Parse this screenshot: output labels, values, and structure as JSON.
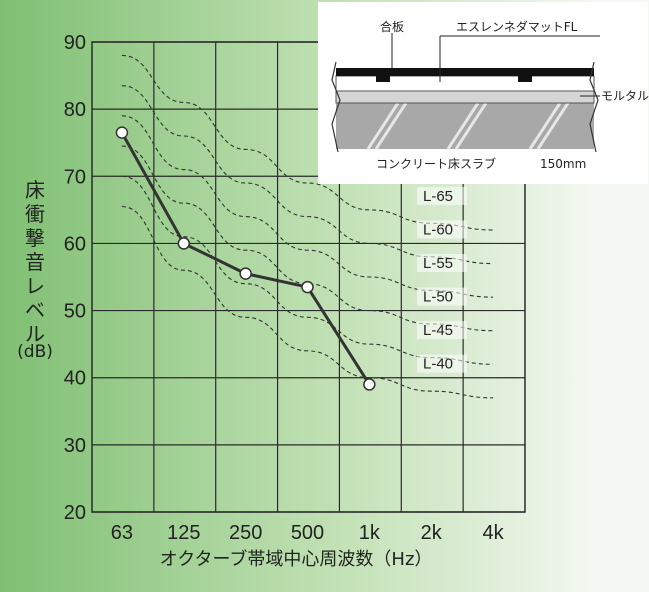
{
  "chart_data": {
    "type": "line",
    "categories": [
      "63",
      "125",
      "250",
      "500",
      "1k",
      "2k",
      "4k"
    ],
    "ylabel": "床衝撃音レベル",
    "ylabel_unit": "(dB)",
    "xlabel": "オクターブ帯域中心周波数（Hz）",
    "ylim": [
      20,
      90
    ],
    "yticks": [
      20,
      30,
      40,
      50,
      60,
      70,
      80,
      90
    ],
    "grid": true,
    "series": [
      {
        "values": [
          76.5,
          60,
          55.5,
          53.5,
          39,
          null,
          null
        ]
      }
    ],
    "reference_curves": [
      {
        "name": "L-65",
        "values": [
          88,
          81,
          74,
          69,
          65,
          63,
          62
        ]
      },
      {
        "name": "L-60",
        "values": [
          83.5,
          76,
          69,
          64,
          60,
          58,
          57
        ]
      },
      {
        "name": "L-55",
        "values": [
          79,
          71,
          64,
          59,
          55,
          53,
          52
        ]
      },
      {
        "name": "L-50",
        "values": [
          74.5,
          66,
          59,
          54,
          50,
          48,
          47
        ]
      },
      {
        "name": "L-45",
        "values": [
          70,
          61,
          54,
          49,
          45,
          43,
          42
        ]
      },
      {
        "name": "L-40",
        "values": [
          65.5,
          56,
          49,
          44,
          40,
          38,
          37
        ]
      }
    ],
    "inset": {
      "labels": {
        "plywood": "合板",
        "mat": "エスレンネダマットFL",
        "mortar": "モルタル",
        "slab": "コンクリート床スラブ",
        "thickness": "150mm"
      }
    }
  }
}
